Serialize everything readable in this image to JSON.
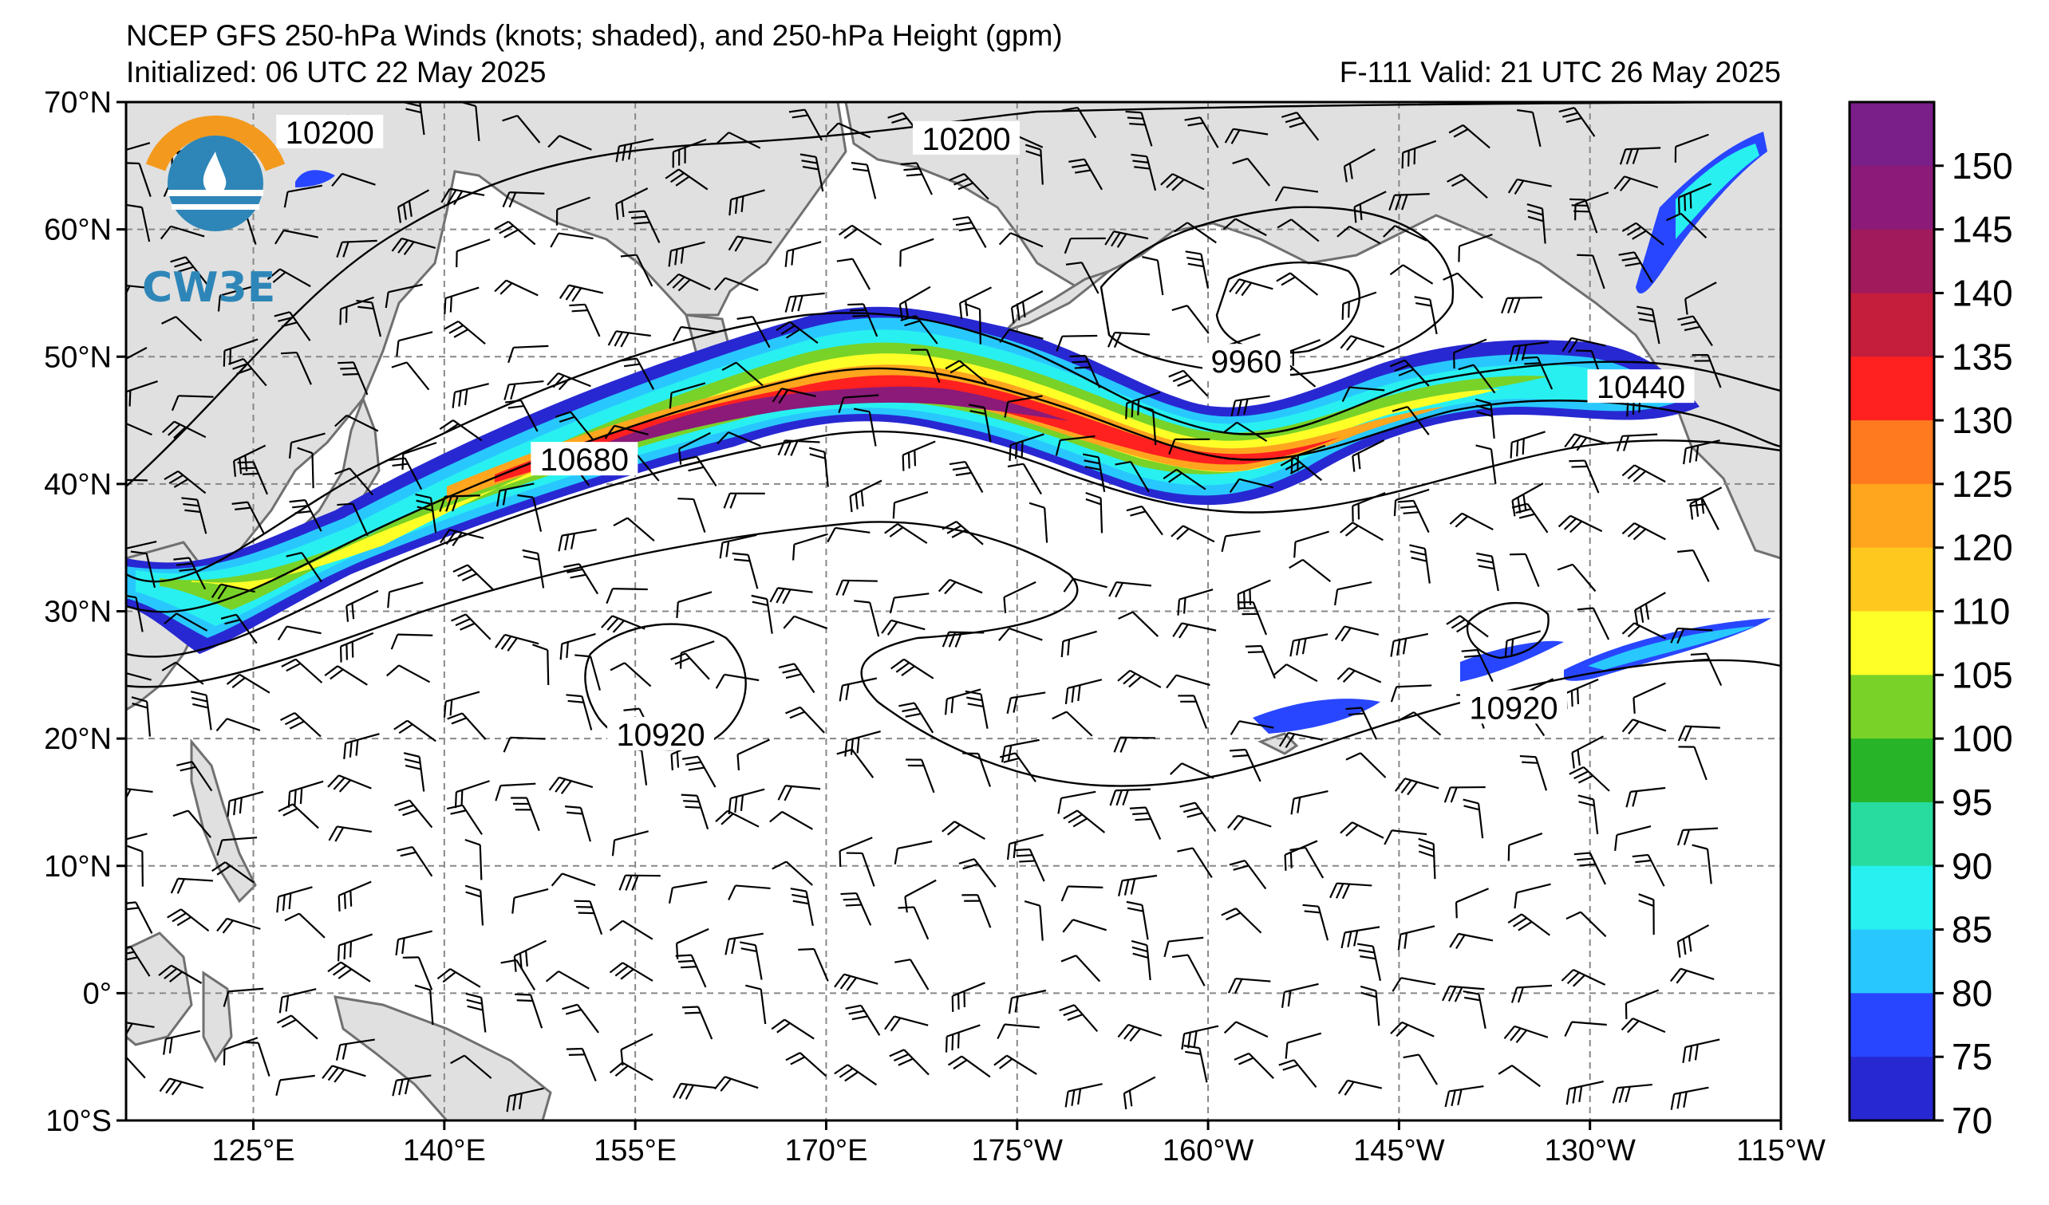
{
  "header": {
    "title": "NCEP GFS 250-hPa Winds (knots; shaded), and 250-hPa Height (gpm)",
    "initialized": "Initialized: 06 UTC 22 May 2025",
    "valid": "F-111  Valid: 21 UTC 26 May 2025"
  },
  "logo": {
    "text": "CW3E",
    "icon": "cw3e-logo-icon"
  },
  "map": {
    "lon_range": [
      115,
      245
    ],
    "lat_range": [
      -10,
      70
    ],
    "lat_ticks": [
      {
        "lat": 70,
        "label": "70°N"
      },
      {
        "lat": 60,
        "label": "60°N"
      },
      {
        "lat": 50,
        "label": "50°N"
      },
      {
        "lat": 40,
        "label": "40°N"
      },
      {
        "lat": 30,
        "label": "30°N"
      },
      {
        "lat": 20,
        "label": "20°N"
      },
      {
        "lat": 10,
        "label": "10°N"
      },
      {
        "lat": 0,
        "label": "0°"
      },
      {
        "lat": -10,
        "label": "10°S"
      }
    ],
    "lon_ticks": [
      {
        "lon": 125,
        "label": "125°E"
      },
      {
        "lon": 140,
        "label": "140°E"
      },
      {
        "lon": 155,
        "label": "155°E"
      },
      {
        "lon": 170,
        "label": "170°E"
      },
      {
        "lon": 185,
        "label": "175°W"
      },
      {
        "lon": 200,
        "label": "160°W"
      },
      {
        "lon": 215,
        "label": "145°W"
      },
      {
        "lon": 230,
        "label": "130°W"
      },
      {
        "lon": 245,
        "label": "115°W"
      }
    ],
    "height_contour_labels": [
      {
        "text": "10200",
        "lon": 131,
        "lat": 67.5
      },
      {
        "text": "10200",
        "lon": 181,
        "lat": 67
      },
      {
        "text": "9960",
        "lon": 203,
        "lat": 49.5
      },
      {
        "text": "10440",
        "lon": 234,
        "lat": 47.5
      },
      {
        "text": "10680",
        "lon": 151,
        "lat": 41.8
      },
      {
        "text": "10920",
        "lon": 157,
        "lat": 20.2
      },
      {
        "text": "10920",
        "lon": 224,
        "lat": 22.3
      }
    ]
  },
  "colorbar": {
    "labels": [
      "150",
      "145",
      "140",
      "135",
      "130",
      "125",
      "120",
      "110",
      "105",
      "100",
      "95",
      "90",
      "85",
      "80",
      "75",
      "70"
    ],
    "colors": [
      "#7a1e8a",
      "#8b1a78",
      "#a01a5c",
      "#c41e3c",
      "#ff2020",
      "#ff7a1e",
      "#ffa51e",
      "#ffc81e",
      "#ffff28",
      "#78d228",
      "#28b428",
      "#28dca0",
      "#28f0f0",
      "#28c8ff",
      "#2846ff",
      "#2828d2"
    ]
  }
}
